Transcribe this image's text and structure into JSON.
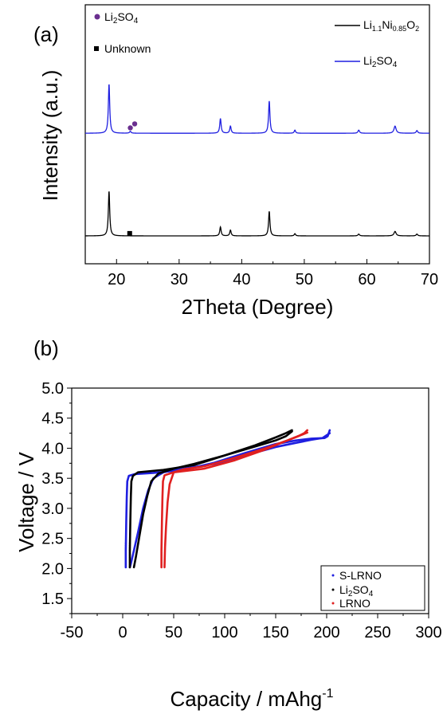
{
  "chart_data": [
    {
      "type": "line",
      "panel_label": "(a)",
      "xlabel": "2Theta (Degree)",
      "ylabel": "Intensity (a.u.)",
      "xlim": [
        15,
        70
      ],
      "x_ticks": [
        "20",
        "30",
        "40",
        "50",
        "60",
        "70"
      ],
      "y_ticks": [],
      "legend": {
        "position": "top-right",
        "entries": [
          {
            "base": "Li",
            "sub1": "1.1",
            "mid": "Ni",
            "sub2": "0.85",
            "tail": "O",
            "sub3": "2",
            "color": "#000000"
          },
          {
            "base": "Li",
            "sub1": "2",
            "mid": "SO",
            "sub2": "4",
            "tail": "",
            "sub3": "",
            "color": "#1f1fe0"
          }
        ]
      },
      "markers_legend": {
        "position": "top-left",
        "entries": [
          {
            "symbol": "circle",
            "color": "#6a2f8f",
            "base": "Li",
            "sub": "2",
            "tail": "SO",
            "sub2": "4"
          },
          {
            "symbol": "square",
            "color": "#000000",
            "base": "Unknown",
            "sub": "",
            "tail": "",
            "sub2": ""
          }
        ]
      },
      "series": [
        {
          "name": "Li1.1Ni0.85O2",
          "color": "#000000",
          "baseline": 0.0,
          "peaks": [
            {
              "x": 18.8,
              "h": 10.0,
              "w": 0.13
            },
            {
              "x": 36.6,
              "h": 2.0,
              "w": 0.13
            },
            {
              "x": 38.2,
              "h": 1.3,
              "w": 0.13
            },
            {
              "x": 44.4,
              "h": 5.5,
              "w": 0.13
            },
            {
              "x": 48.5,
              "h": 0.5,
              "w": 0.13
            },
            {
              "x": 58.7,
              "h": 0.4,
              "w": 0.15
            },
            {
              "x": 64.5,
              "h": 1.0,
              "w": 0.2
            },
            {
              "x": 68.0,
              "h": 0.4,
              "w": 0.15
            }
          ],
          "markers": [
            {
              "x": 22.1,
              "symbol": "square",
              "y_offset": 0.55
            }
          ]
        },
        {
          "name": "Li2SO4",
          "color": "#1f1fe0",
          "baseline": 23.0,
          "peaks": [
            {
              "x": 18.8,
              "h": 11.0,
              "w": 0.13
            },
            {
              "x": 22.2,
              "h": 0.4,
              "w": 0.15
            },
            {
              "x": 36.6,
              "h": 3.3,
              "w": 0.13
            },
            {
              "x": 38.2,
              "h": 1.6,
              "w": 0.13
            },
            {
              "x": 44.4,
              "h": 7.2,
              "w": 0.13
            },
            {
              "x": 48.5,
              "h": 0.7,
              "w": 0.13
            },
            {
              "x": 58.7,
              "h": 0.7,
              "w": 0.15
            },
            {
              "x": 64.5,
              "h": 1.6,
              "w": 0.2
            },
            {
              "x": 68.0,
              "h": 0.6,
              "w": 0.15
            }
          ],
          "markers": [
            {
              "x": 22.2,
              "symbol": "circle",
              "y_offset": 1.2
            },
            {
              "x": 22.9,
              "symbol": "circle",
              "y_offset": 2.1
            }
          ]
        }
      ]
    },
    {
      "type": "scatter",
      "panel_label": "(b)",
      "xlabel": "Capacity / mAhg",
      "xlabel_sup": "-1",
      "ylabel": "Voltage / V",
      "xlim": [
        -50,
        300
      ],
      "ylim": [
        1.25,
        5.0
      ],
      "x_ticks": [
        "-50",
        "0",
        "50",
        "100",
        "150",
        "200",
        "250",
        "300"
      ],
      "y_ticks": [
        "1.5",
        "2.0",
        "2.5",
        "3.0",
        "3.5",
        "4.0",
        "4.5",
        "5.0"
      ],
      "legend": {
        "position": "bottom-right",
        "entries": [
          {
            "base": "S-LRNO",
            "sub": "",
            "tail": "",
            "sub2": "",
            "color": "#1f1fe0"
          },
          {
            "base": "Li",
            "sub": "2",
            "tail": "SO",
            "sub2": "4",
            "color": "#000000"
          },
          {
            "base": "LRNO",
            "sub": "",
            "tail": "",
            "sub2": "",
            "color": "#e02020"
          }
        ]
      },
      "series": [
        {
          "name": "S-LRNO",
          "color": "#1f1fe0",
          "charge": [
            [
              3,
              2.02
            ],
            [
              3,
              2.3
            ],
            [
              3.5,
              2.8
            ],
            [
              4,
              3.2
            ],
            [
              4.5,
              3.45
            ],
            [
              6,
              3.54
            ],
            [
              12,
              3.57
            ],
            [
              30,
              3.59
            ],
            [
              60,
              3.64
            ],
            [
              90,
              3.76
            ],
            [
              120,
              3.92
            ],
            [
              150,
              4.07
            ],
            [
              170,
              4.13
            ],
            [
              185,
              4.16
            ],
            [
              198,
              4.17
            ],
            [
              201,
              4.2
            ],
            [
              203,
              4.3
            ]
          ],
          "discharge": [
            [
              203,
              4.25
            ],
            [
              196,
              4.17
            ],
            [
              185,
              4.14
            ],
            [
              170,
              4.09
            ],
            [
              150,
              4.02
            ],
            [
              120,
              3.88
            ],
            [
              90,
              3.74
            ],
            [
              60,
              3.66
            ],
            [
              40,
              3.6
            ],
            [
              30,
              3.5
            ],
            [
              25,
              3.3
            ],
            [
              20,
              3.0
            ],
            [
              15,
              2.6
            ],
            [
              11,
              2.3
            ],
            [
              8,
              2.08
            ],
            [
              7,
              2.02
            ]
          ]
        },
        {
          "name": "Li2SO4",
          "color": "#000000",
          "charge": [
            [
              7,
              2.02
            ],
            [
              7,
              2.3
            ],
            [
              7.5,
              2.8
            ],
            [
              8,
              3.2
            ],
            [
              8.5,
              3.45
            ],
            [
              10,
              3.54
            ],
            [
              15,
              3.6
            ],
            [
              40,
              3.64
            ],
            [
              70,
              3.72
            ],
            [
              100,
              3.88
            ],
            [
              130,
              4.05
            ],
            [
              150,
              4.18
            ],
            [
              160,
              4.25
            ],
            [
              166,
              4.3
            ]
          ],
          "discharge": [
            [
              166,
              4.28
            ],
            [
              160,
              4.2
            ],
            [
              150,
              4.13
            ],
            [
              130,
              4.03
            ],
            [
              100,
              3.88
            ],
            [
              70,
              3.74
            ],
            [
              50,
              3.66
            ],
            [
              35,
              3.58
            ],
            [
              28,
              3.45
            ],
            [
              24,
              3.2
            ],
            [
              20,
              2.9
            ],
            [
              16,
              2.5
            ],
            [
              13,
              2.2
            ],
            [
              11,
              2.02
            ]
          ]
        },
        {
          "name": "LRNO",
          "color": "#e02020",
          "charge": [
            [
              38,
              2.02
            ],
            [
              38,
              2.3
            ],
            [
              38.5,
              2.8
            ],
            [
              39,
              3.2
            ],
            [
              39.5,
              3.45
            ],
            [
              41,
              3.55
            ],
            [
              50,
              3.6
            ],
            [
              80,
              3.66
            ],
            [
              110,
              3.8
            ],
            [
              140,
              3.98
            ],
            [
              160,
              4.12
            ],
            [
              172,
              4.2
            ],
            [
              178,
              4.25
            ],
            [
              181,
              4.3
            ]
          ],
          "discharge": [
            [
              181,
              4.26
            ],
            [
              172,
              4.2
            ],
            [
              160,
              4.12
            ],
            [
              140,
              4.0
            ],
            [
              110,
              3.84
            ],
            [
              80,
              3.7
            ],
            [
              60,
              3.65
            ],
            [
              50,
              3.6
            ],
            [
              46,
              3.4
            ],
            [
              44,
              3.1
            ],
            [
              42.5,
              2.7
            ],
            [
              41.5,
              2.35
            ],
            [
              41,
              2.02
            ]
          ]
        }
      ]
    }
  ]
}
